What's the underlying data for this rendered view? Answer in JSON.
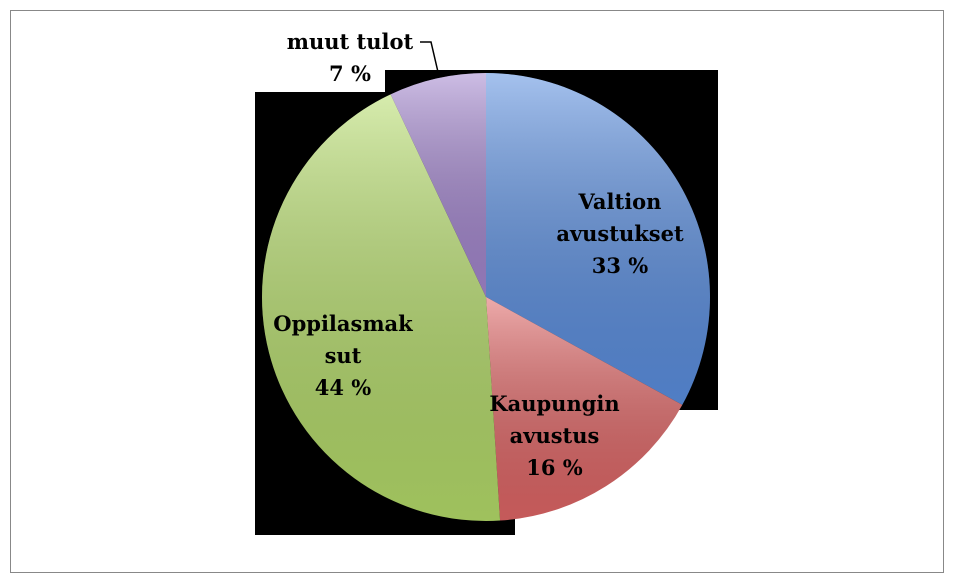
{
  "chart_data": {
    "type": "pie",
    "categories": [
      "Valtion avustukset",
      "Kaupungin avustus",
      "Oppilasmaksut",
      "muut tulot"
    ],
    "values": [
      33,
      16,
      44,
      7
    ],
    "value_labels": [
      "33 %",
      "16 %",
      "44 %",
      "7 %"
    ],
    "colors": [
      "#5b8fe0",
      "#e06666",
      "#b5dc6a",
      "#a487cf"
    ]
  }
}
